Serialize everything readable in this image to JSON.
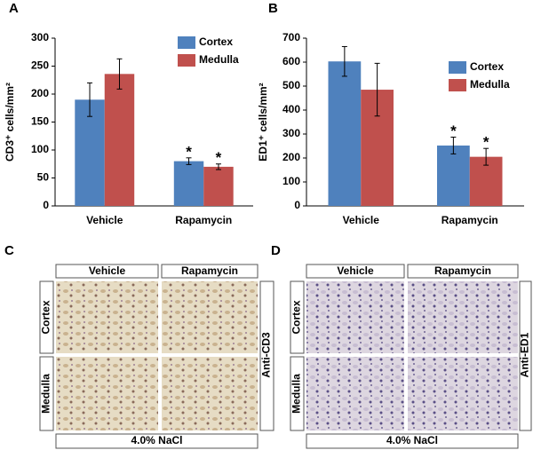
{
  "chart_data": [
    {
      "type": "bar",
      "label": "A",
      "y_label": "CD3⁺ cells/mm²",
      "categories": [
        "Vehicle",
        "Rapamycin"
      ],
      "series": [
        {
          "name": "Cortex",
          "color": "#4f81bd",
          "values": [
            190,
            80
          ],
          "errors": [
            30,
            6
          ],
          "annotations": [
            null,
            "*"
          ]
        },
        {
          "name": "Medulla",
          "color": "#c0504d",
          "values": [
            236,
            70
          ],
          "errors": [
            27,
            5
          ],
          "annotations": [
            null,
            "*"
          ]
        }
      ],
      "ylim": [
        0,
        300
      ],
      "yticks": [
        0,
        50,
        100,
        150,
        200,
        250,
        300
      ],
      "grid": false,
      "legend": "upper right"
    },
    {
      "type": "bar",
      "label": "B",
      "y_label": "ED1⁺ cells/mm²",
      "categories": [
        "Vehicle",
        "Rapamycin"
      ],
      "series": [
        {
          "name": "Cortex",
          "color": "#4f81bd",
          "values": [
            603,
            252
          ],
          "errors": [
            62,
            35
          ],
          "annotations": [
            null,
            "*"
          ]
        },
        {
          "name": "Medulla",
          "color": "#c0504d",
          "values": [
            485,
            205
          ],
          "errors": [
            110,
            35
          ],
          "annotations": [
            null,
            "*"
          ]
        }
      ],
      "ylim": [
        0,
        700
      ],
      "yticks": [
        0,
        100,
        200,
        300,
        400,
        500,
        600,
        700
      ],
      "grid": false,
      "legend": "upper right"
    }
  ],
  "micrographs": [
    {
      "label": "C",
      "columns": [
        "Vehicle",
        "Rapamycin"
      ],
      "rows": [
        "Cortex",
        "Medulla"
      ],
      "stain": "Anti-CD3",
      "condition": "4.0% NaCl"
    },
    {
      "label": "D",
      "columns": [
        "Vehicle",
        "Rapamycin"
      ],
      "rows": [
        "Cortex",
        "Medulla"
      ],
      "stain": "Anti-ED1",
      "condition": "4.0% NaCl"
    }
  ]
}
